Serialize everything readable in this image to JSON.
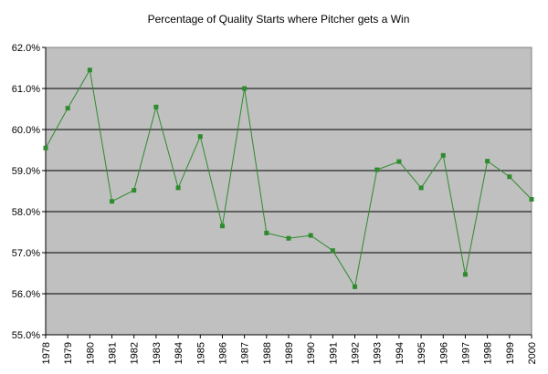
{
  "chart_data": {
    "type": "line",
    "title": "Percentage of Quality Starts where Pitcher gets a Win",
    "xlabel": "",
    "ylabel": "",
    "ylim": [
      55.0,
      62.0
    ],
    "y_ticks": [
      "55.0%",
      "56.0%",
      "57.0%",
      "58.0%",
      "59.0%",
      "60.0%",
      "61.0%",
      "62.0%"
    ],
    "grid": true,
    "legend": "none",
    "categories": [
      "1978",
      "1979",
      "1980",
      "1981",
      "1982",
      "1983",
      "1984",
      "1985",
      "1986",
      "1987",
      "1988",
      "1989",
      "1990",
      "1991",
      "1992",
      "1993",
      "1994",
      "1995",
      "1996",
      "1997",
      "1998",
      "1999",
      "2000"
    ],
    "series": [
      {
        "values": [
          59.55,
          60.52,
          61.45,
          58.25,
          58.52,
          60.55,
          58.58,
          59.83,
          57.65,
          61.0,
          57.48,
          57.35,
          57.42,
          57.05,
          56.17,
          59.02,
          59.22,
          58.58,
          59.37,
          56.47,
          59.23,
          58.85,
          58.3
        ],
        "color": "#2e8b2e"
      }
    ],
    "plot_background": "#c0c0c0"
  }
}
